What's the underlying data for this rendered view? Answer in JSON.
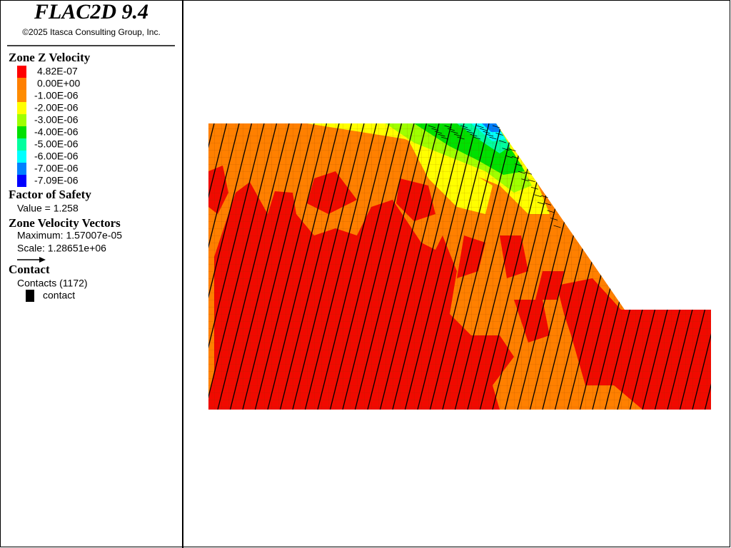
{
  "header": {
    "title": "FLAC2D 9.4",
    "copyright": "©2025 Itasca Consulting Group, Inc."
  },
  "legend": {
    "contour": {
      "title": "Zone Z Velocity",
      "items": [
        {
          "label": "4.82E-07",
          "color": "#ff0000"
        },
        {
          "label": "0.00E+00",
          "color": "#ff7f00"
        },
        {
          "label": "-1.00E-06",
          "color": "#ff8c00"
        },
        {
          "label": "-2.00E-06",
          "color": "#ffff00"
        },
        {
          "label": "-3.00E-06",
          "color": "#9fff00"
        },
        {
          "label": "-4.00E-06",
          "color": "#00e000"
        },
        {
          "label": "-5.00E-06",
          "color": "#00ff9f"
        },
        {
          "label": "-6.00E-06",
          "color": "#00ffff"
        },
        {
          "label": "-7.00E-06",
          "color": "#0080ff"
        },
        {
          "label": "-7.09E-06",
          "color": "#0000ff"
        }
      ]
    },
    "safety": {
      "title": "Factor of Safety",
      "value": "Value = 1.258"
    },
    "vectors": {
      "title": "Zone Velocity Vectors",
      "maximum": "Maximum: 1.57007e-05",
      "scale": "Scale: 1.28651e+06"
    },
    "contact": {
      "title": "Contact",
      "count": "Contacts (1172)",
      "item": "contact"
    }
  }
}
